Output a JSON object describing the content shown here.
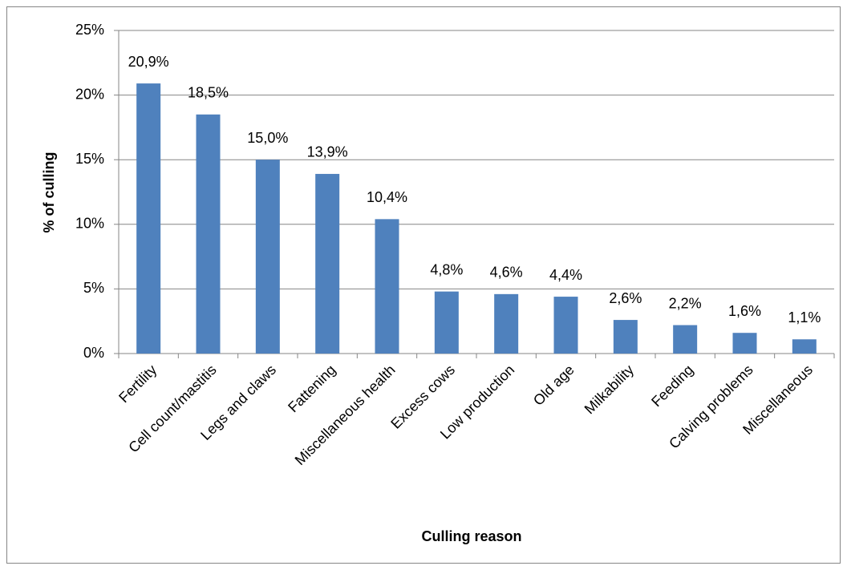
{
  "chart_data": {
    "type": "bar",
    "x_label": "Culling reason",
    "y_label": "% of culling",
    "categories": [
      "Fertility",
      "Cell count/mastitis",
      "Legs and claws",
      "Fattening",
      "Miscellaneous health",
      "Excess cows",
      "Low production",
      "Old age",
      "Milkability",
      "Feeding",
      "Calving problems",
      "Miscellaneous"
    ],
    "values": [
      20.9,
      18.5,
      15.0,
      13.9,
      10.4,
      4.8,
      4.6,
      4.4,
      2.6,
      2.2,
      1.6,
      1.1
    ],
    "value_labels": [
      "20,9%",
      "18,5%",
      "15,0%",
      "13,9%",
      "10,4%",
      "4,8%",
      "4,6%",
      "4,4%",
      "2,6%",
      "2,2%",
      "1,6%",
      "1,1%"
    ],
    "color": "#4f81bd",
    "ylim": [
      0,
      25
    ],
    "yticks": [
      {
        "value": 0,
        "label": "0%"
      },
      {
        "value": 5,
        "label": "5%"
      },
      {
        "value": 10,
        "label": "10%"
      },
      {
        "value": 15,
        "label": "15%"
      },
      {
        "value": 20,
        "label": "20%"
      },
      {
        "value": 25,
        "label": "25%"
      }
    ],
    "grid": true
  }
}
